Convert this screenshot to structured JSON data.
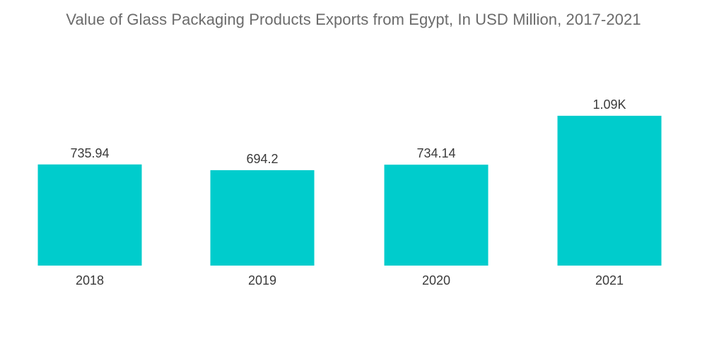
{
  "chart_data": {
    "type": "bar",
    "title": "Value of Glass Packaging Products Exports from Egypt, In USD Million, 2017-2021",
    "xlabel": "",
    "ylabel": "",
    "categories": [
      "2018",
      "2019",
      "2020",
      "2021"
    ],
    "values": [
      735.94,
      694.2,
      734.14,
      1090
    ],
    "data_labels": [
      "735.94",
      "694.2",
      "734.14",
      "1.09K"
    ],
    "ylim": [
      0,
      1110
    ],
    "grid": false,
    "legend": "none",
    "bar_color": "#00cccc"
  }
}
